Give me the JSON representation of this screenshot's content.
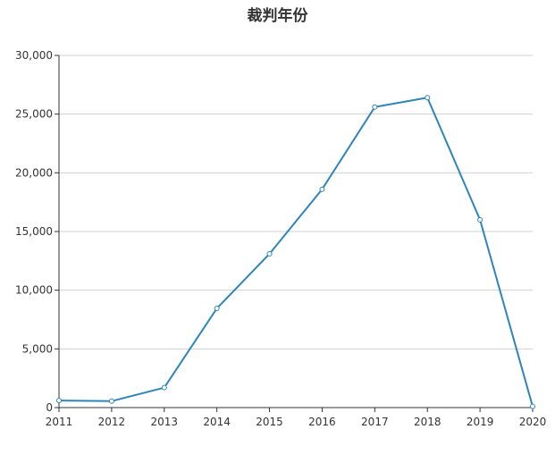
{
  "chart_data": {
    "type": "line",
    "title": "裁判年份",
    "xlabel": "",
    "ylabel": "",
    "x": [
      "2011",
      "2012",
      "2013",
      "2014",
      "2015",
      "2016",
      "2017",
      "2018",
      "2019",
      "2020"
    ],
    "series": [
      {
        "values": [
          600,
          550,
          1700,
          8450,
          13100,
          18600,
          25600,
          26400,
          16000,
          100
        ]
      }
    ],
    "ylim": [
      0,
      30000
    ],
    "yticks": [
      "0",
      "5,000",
      "10,000",
      "15,000",
      "20,000",
      "25,000",
      "30,000"
    ],
    "ytick_values": [
      0,
      5000,
      10000,
      15000,
      20000,
      25000,
      30000
    ],
    "grid": true,
    "legend": "none",
    "colors": {
      "line": "#2e85b8",
      "marker_fill": "#ffffff",
      "grid": "#d0d0d0",
      "axis": "#333333"
    }
  }
}
